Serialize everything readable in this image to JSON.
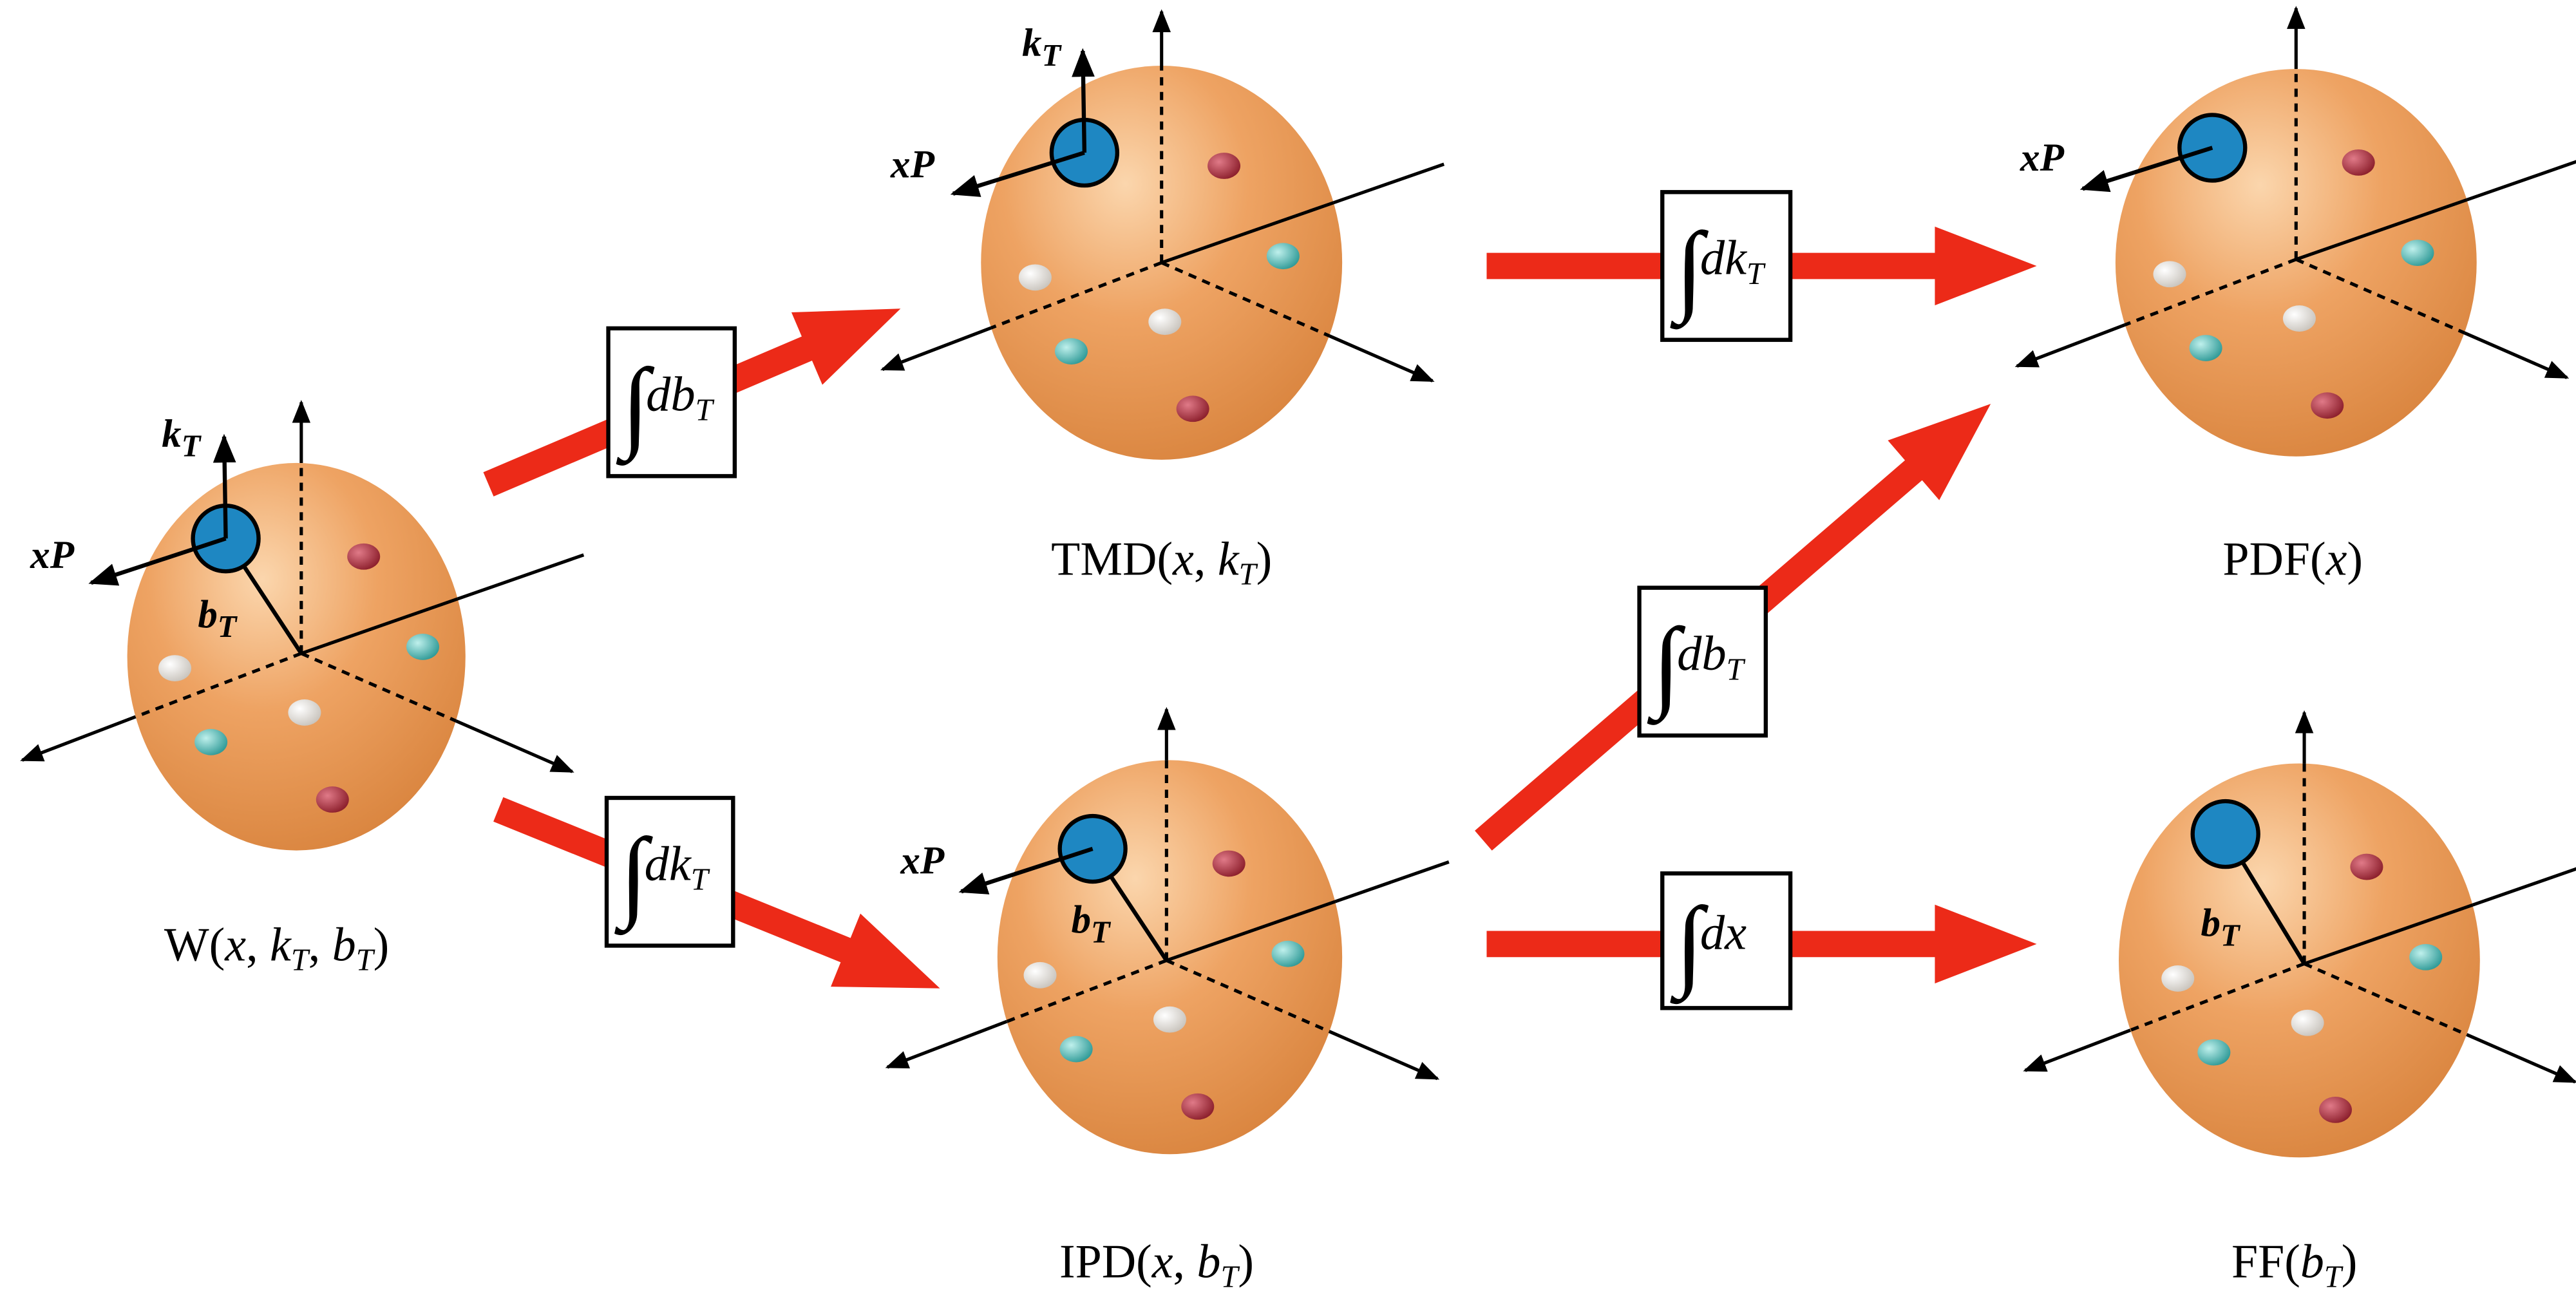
{
  "diagram": {
    "nodes": [
      {
        "label": [
          "W(",
          "x",
          ", ",
          "k",
          "T",
          ", ",
          "b",
          "T",
          ")"
        ],
        "axis_labels": {
          "kT": [
            "k",
            "T"
          ],
          "xP": "xP",
          "bT": [
            "b",
            "T"
          ]
        }
      },
      {
        "label": [
          "TMD(",
          "x",
          ", ",
          "k",
          "T",
          ")"
        ],
        "axis_labels": {
          "kT": [
            "k",
            "T"
          ],
          "xP": "xP"
        }
      },
      {
        "label": [
          "PDF(",
          "x",
          ")"
        ],
        "axis_labels": {
          "xP": "xP"
        }
      },
      {
        "label": [
          "IPD(",
          "x",
          ", ",
          "b",
          "T",
          ")"
        ],
        "axis_labels": {
          "xP": "xP",
          "bT": [
            "b",
            "T"
          ]
        }
      },
      {
        "label": [
          "FF(",
          "b",
          "T",
          ")"
        ],
        "axis_labels": {
          "bT": [
            "b",
            "T"
          ]
        }
      }
    ],
    "edges": [
      {
        "label": [
          "∫",
          "d",
          "b",
          "T"
        ]
      },
      {
        "label": [
          "∫",
          "d",
          "k",
          "T"
        ]
      },
      {
        "label": [
          "∫",
          "d",
          "k",
          "T"
        ]
      },
      {
        "label": [
          "∫",
          "d",
          "b",
          "T"
        ]
      },
      {
        "label": [
          "∫",
          "d",
          "x"
        ]
      }
    ]
  }
}
